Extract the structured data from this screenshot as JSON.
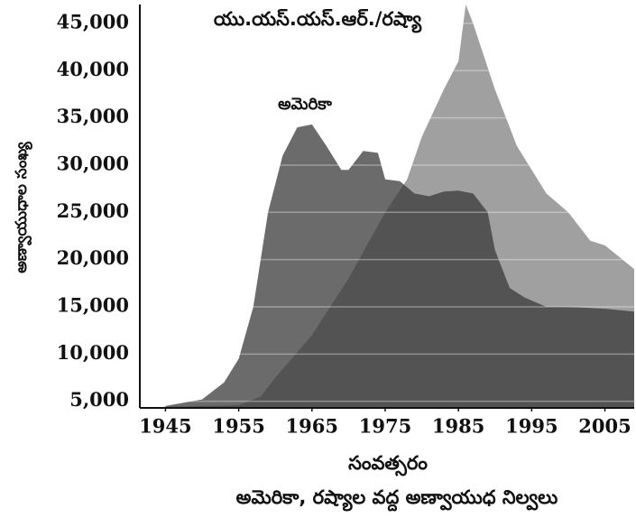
{
  "chart_data": {
    "type": "area",
    "title": "అమెరికా, రష్యాల వద్ద అణ్వాయుధ నిల్వలు",
    "x_label": "సంవత్సరం",
    "y_label": "అణ్వాయుధాల సంఖ్య",
    "series": [
      {
        "name": "అమెరికా",
        "color": "#3a3a3a",
        "x": [
          1945,
          1950,
          1953,
          1955,
          1957,
          1959,
          1961,
          1963,
          1965,
          1967,
          1969,
          1970,
          1972,
          1974,
          1975,
          1977,
          1979,
          1981,
          1983,
          1985,
          1987,
          1989,
          1990,
          1992,
          1994,
          1997,
          2000,
          2005,
          2009
        ],
        "values": [
          4500,
          5200,
          7000,
          9500,
          15000,
          25000,
          31000,
          34000,
          34300,
          32000,
          29500,
          29500,
          31500,
          31300,
          28500,
          28300,
          27000,
          26700,
          27200,
          27300,
          27000,
          25000,
          21000,
          17000,
          16000,
          15000,
          15000,
          14800,
          14500
        ]
      },
      {
        "name": "యు.యస్.యస్.ఆర్./రష్యా",
        "color": "#808080",
        "x": [
          1945,
          1955,
          1958,
          1960,
          1965,
          1970,
          1975,
          1978,
          1980,
          1983,
          1985,
          1986,
          1987,
          1990,
          1993,
          1997,
          2000,
          2003,
          2005,
          2009
        ],
        "values": [
          4400,
          4600,
          5500,
          7500,
          12000,
          18000,
          25000,
          28500,
          33000,
          38000,
          41000,
          47000,
          45000,
          38000,
          32000,
          27000,
          25000,
          22000,
          21500,
          19000
        ]
      }
    ],
    "xlim": [
      1941.5,
      2009
    ],
    "xticks": [
      1945,
      1955,
      1965,
      1975,
      1985,
      1995,
      2005
    ],
    "ylim": [
      4300,
      47000
    ],
    "yticks": [
      {
        "value": 5000,
        "label": "5,000"
      },
      {
        "value": 10000,
        "label": "10,000"
      },
      {
        "value": 15000,
        "label": "15,000"
      },
      {
        "value": 20000,
        "label": "20,000"
      },
      {
        "value": 25000,
        "label": "25,000"
      },
      {
        "value": 30000,
        "label": "30,000"
      },
      {
        "value": 35000,
        "label": "35,000"
      },
      {
        "value": 40000,
        "label": "40,000"
      },
      {
        "value": 45000,
        "label": "45,000"
      }
    ],
    "grid": true
  }
}
